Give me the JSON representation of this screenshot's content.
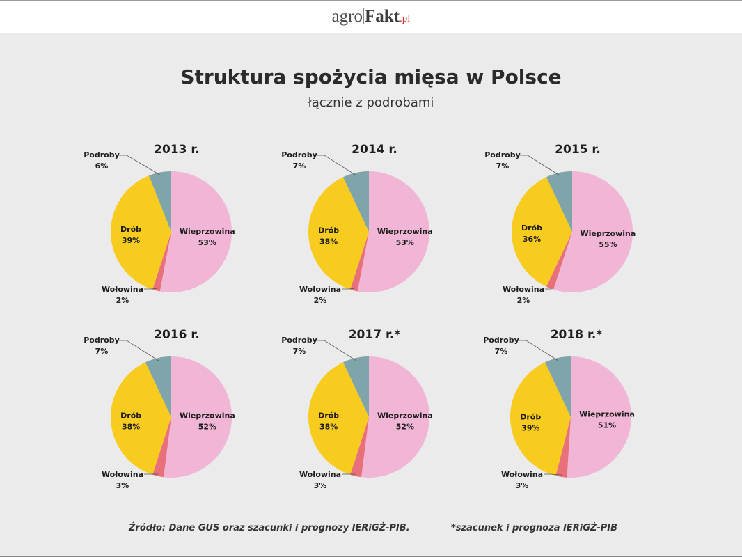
{
  "logo": {
    "part1": "agro",
    "part2": "Fakt",
    "part3": ".pl"
  },
  "title": "Struktura spożycia mięsa w Polsce",
  "subtitle": "łącznie z podrobami",
  "colors": {
    "Wieprzowina": "#f1b6d6",
    "Wołowina": "#e8707a",
    "Drób": "#f8cb1f",
    "Podroby": "#7fa4a9"
  },
  "chart_data": [
    {
      "type": "pie",
      "title": "2013 r.",
      "slices": [
        {
          "label": "Wieprzowina",
          "value": 53,
          "value_label": "53%"
        },
        {
          "label": "Wołowina",
          "value": 2,
          "value_label": "2%"
        },
        {
          "label": "Drób",
          "value": 39,
          "value_label": "39%"
        },
        {
          "label": "Podroby",
          "value": 6,
          "value_label": "6%"
        }
      ]
    },
    {
      "type": "pie",
      "title": "2014 r.",
      "slices": [
        {
          "label": "Wieprzowina",
          "value": 53,
          "value_label": "53%"
        },
        {
          "label": "Wołowina",
          "value": 2,
          "value_label": "2%"
        },
        {
          "label": "Drób",
          "value": 38,
          "value_label": "38%"
        },
        {
          "label": "Podroby",
          "value": 7,
          "value_label": "7%"
        }
      ]
    },
    {
      "type": "pie",
      "title": "2015 r.",
      "slices": [
        {
          "label": "Wieprzowina",
          "value": 55,
          "value_label": "55%"
        },
        {
          "label": "Wołowina",
          "value": 2,
          "value_label": "2%"
        },
        {
          "label": "Drób",
          "value": 36,
          "value_label": "36%"
        },
        {
          "label": "Podroby",
          "value": 7,
          "value_label": "7%"
        }
      ]
    },
    {
      "type": "pie",
      "title": "2016 r.",
      "slices": [
        {
          "label": "Wieprzowina",
          "value": 52,
          "value_label": "52%"
        },
        {
          "label": "Wołowina",
          "value": 3,
          "value_label": "3%"
        },
        {
          "label": "Drób",
          "value": 38,
          "value_label": "38%"
        },
        {
          "label": "Podroby",
          "value": 7,
          "value_label": "7%"
        }
      ]
    },
    {
      "type": "pie",
      "title": "2017 r.*",
      "slices": [
        {
          "label": "Wieprzowina",
          "value": 52,
          "value_label": "52%"
        },
        {
          "label": "Wołowina",
          "value": 3,
          "value_label": "3%"
        },
        {
          "label": "Drób",
          "value": 38,
          "value_label": "38%"
        },
        {
          "label": "Podroby",
          "value": 7,
          "value_label": "7%"
        }
      ]
    },
    {
      "type": "pie",
      "title": "2018 r.*",
      "slices": [
        {
          "label": "Wieprzowina",
          "value": 51,
          "value_label": "51%"
        },
        {
          "label": "Wołowina",
          "value": 3,
          "value_label": "3%"
        },
        {
          "label": "Drób",
          "value": 39,
          "value_label": "39%"
        },
        {
          "label": "Podroby",
          "value": 7,
          "value_label": "7%"
        }
      ]
    }
  ],
  "footer": {
    "source": "Źródło: Dane GUS oraz szacunki i prognozy IERiGŻ-PIB.",
    "note": "*szacunek i prognoza IERiGŻ-PIB"
  }
}
